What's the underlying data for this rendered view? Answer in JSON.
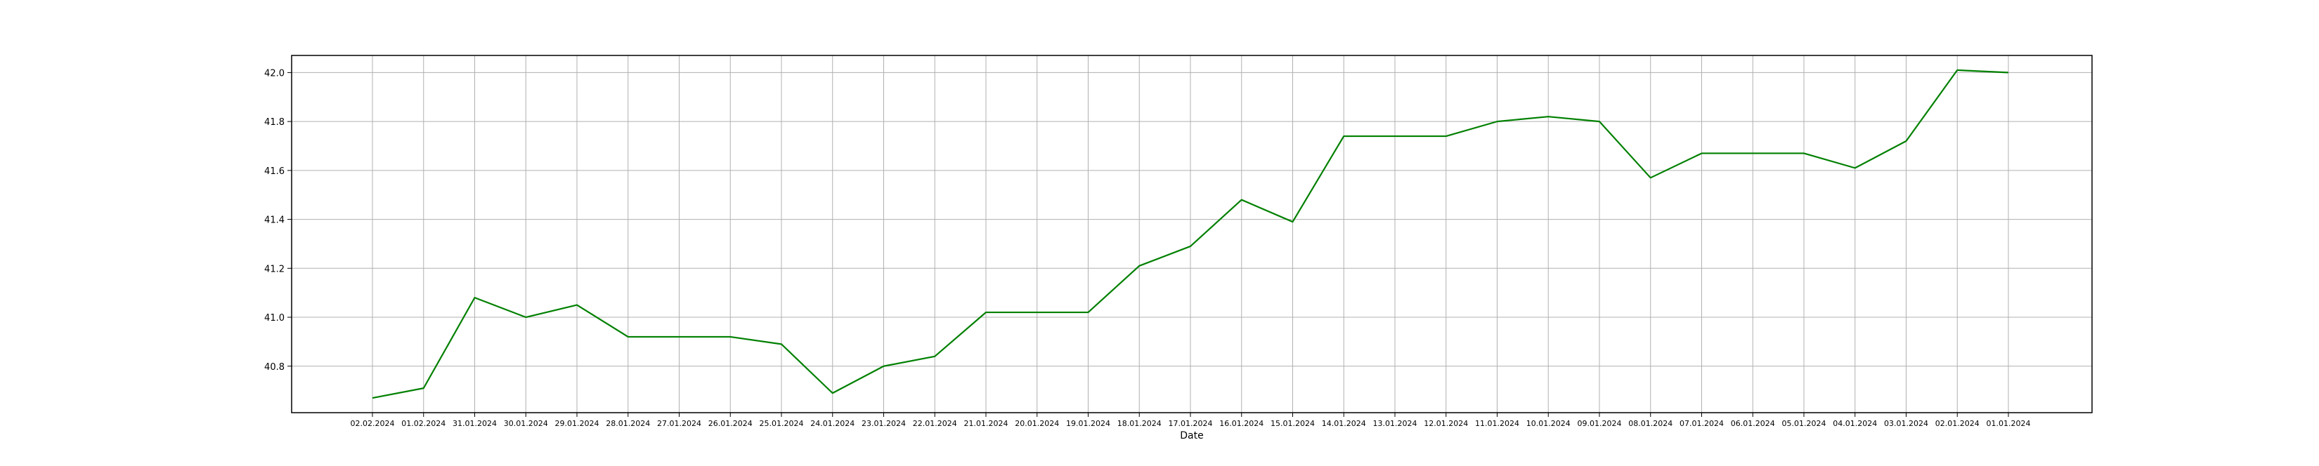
{
  "chart_data": {
    "type": "line",
    "title": "",
    "xlabel": "Date",
    "ylabel": "",
    "ylim": [
      40.61,
      42.07
    ],
    "y_ticks": [
      40.8,
      41.0,
      41.2,
      41.4,
      41.6,
      41.8,
      42.0
    ],
    "y_tick_labels": [
      "40.8",
      "41.0",
      "41.2",
      "41.4",
      "41.6",
      "41.8",
      "42.0"
    ],
    "grid": true,
    "legend": "none",
    "colors": {
      "line": "#008000",
      "grid": "#b0b0b0",
      "axes": "#000000"
    },
    "categories": [
      "02.02.2024",
      "01.02.2024",
      "31.01.2024",
      "30.01.2024",
      "29.01.2024",
      "28.01.2024",
      "27.01.2024",
      "26.01.2024",
      "25.01.2024",
      "24.01.2024",
      "23.01.2024",
      "22.01.2024",
      "21.01.2024",
      "20.01.2024",
      "19.01.2024",
      "18.01.2024",
      "17.01.2024",
      "16.01.2024",
      "15.01.2024",
      "14.01.2024",
      "13.01.2024",
      "12.01.2024",
      "11.01.2024",
      "10.01.2024",
      "09.01.2024",
      "08.01.2024",
      "07.01.2024",
      "06.01.2024",
      "05.01.2024",
      "04.01.2024",
      "03.01.2024",
      "02.01.2024",
      "01.01.2024"
    ],
    "series": [
      {
        "values": [
          40.67,
          40.71,
          41.08,
          41.0,
          41.05,
          40.92,
          40.92,
          40.92,
          40.89,
          40.69,
          40.8,
          40.84,
          41.02,
          41.02,
          41.02,
          41.21,
          41.29,
          41.48,
          41.39,
          41.74,
          41.74,
          41.74,
          41.8,
          41.82,
          41.8,
          41.57,
          41.67,
          41.67,
          41.67,
          41.61,
          41.72,
          42.01,
          42.0
        ]
      }
    ]
  }
}
